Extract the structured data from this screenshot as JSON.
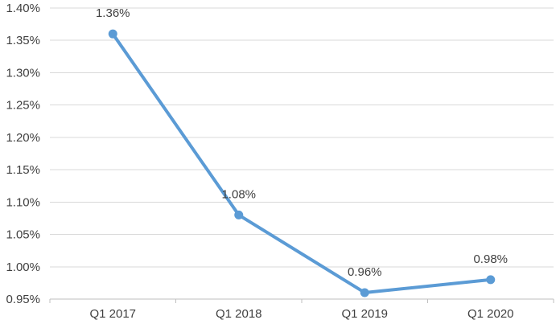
{
  "chart_data": {
    "type": "line",
    "title": "",
    "xlabel": "",
    "ylabel": "",
    "categories": [
      "Q1 2017",
      "Q1 2018",
      "Q1 2019",
      "Q1 2020"
    ],
    "series": [
      {
        "values": [
          1.36,
          1.08,
          0.96,
          0.98
        ],
        "data_labels": [
          "1.36%",
          "1.08%",
          "0.96%",
          "0.98%"
        ],
        "color": "#5B9BD5"
      }
    ],
    "ylim": [
      0.95,
      1.4
    ],
    "y_ticks": [
      0.95,
      1.0,
      1.05,
      1.1,
      1.15,
      1.2,
      1.25,
      1.3,
      1.35,
      1.4
    ],
    "y_tick_labels": [
      "0.95%",
      "1.00%",
      "1.05%",
      "1.10%",
      "1.15%",
      "1.20%",
      "1.25%",
      "1.30%",
      "1.35%",
      "1.40%"
    ],
    "grid": true,
    "legend": "none",
    "gridline_color": "#D9D9D9",
    "axis_line_color": "#BFBFBF"
  }
}
